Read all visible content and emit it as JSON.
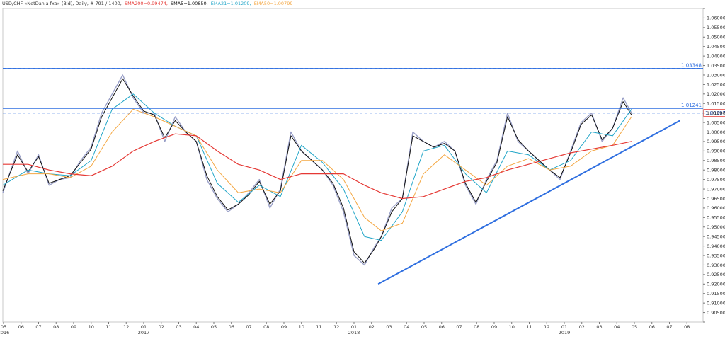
{
  "header": {
    "symbol": "USD/CHF «NetDania fxa» (Bid), Daily, # 791 / 1400,",
    "sma200": "SMA200=0.99474,",
    "sma5": "SMA5=1.00850,",
    "ema21": "EMA21=1.01209,",
    "ema50": "EMA50=1.00799"
  },
  "colors": {
    "price": "#9aa0c8",
    "sma5": "#111111",
    "sma200": "#e53935",
    "ema21": "#22a6c8",
    "ema50": "#f4a742",
    "trendline": "#2f6fe0",
    "level": "#2f6fe0"
  },
  "chart_data": {
    "type": "line",
    "y_axis": {
      "min": 0.9,
      "max": 1.065,
      "tick_step": 0.005,
      "position": "right",
      "decimals": 5
    },
    "x_axis": {
      "month_labels": [
        "05",
        "06",
        "07",
        "08",
        "09",
        "10",
        "11",
        "12",
        "01",
        "02",
        "03",
        "04",
        "05",
        "06",
        "07",
        "08",
        "09",
        "10",
        "11",
        "12",
        "01",
        "02",
        "03",
        "04",
        "05",
        "06",
        "07",
        "08",
        "09",
        "10",
        "11",
        "12",
        "01",
        "02",
        "03",
        "04",
        "05",
        "06",
        "07",
        "08"
      ],
      "year_labels": [
        {
          "text": "2016",
          "at_month": "2016-05"
        },
        {
          "text": "2017",
          "at_month": "2017-01"
        },
        {
          "text": "2018",
          "at_month": "2018-01"
        },
        {
          "text": "2019",
          "at_month": "2019-01"
        }
      ]
    },
    "horizontal_levels": [
      {
        "value": 1.03348,
        "label": "1.03348",
        "style": "solid"
      },
      {
        "value": 1.0335,
        "label": "",
        "style": "dashed"
      },
      {
        "value": 1.01241,
        "label": "1.01241",
        "style": "solid"
      },
      {
        "value": 1.00997,
        "label": "1.00997",
        "style": "dashed",
        "boxed": true
      }
    ],
    "trendline": {
      "from": {
        "x": 2018.115,
        "y": 0.92
      },
      "to": {
        "x": 2019.55,
        "y": 1.006
      }
    },
    "series": [
      {
        "key": "price",
        "x": [
          2016.33,
          2016.4,
          2016.45,
          2016.5,
          2016.55,
          2016.6,
          2016.65,
          2016.7,
          2016.75,
          2016.8,
          2016.85,
          2016.9,
          2016.95,
          2017.0,
          2017.05,
          2017.1,
          2017.15,
          2017.2,
          2017.25,
          2017.3,
          2017.35,
          2017.4,
          2017.45,
          2017.5,
          2017.55,
          2017.6,
          2017.65,
          2017.7,
          2017.75,
          2017.8,
          2017.85,
          2017.9,
          2017.95,
          2018.0,
          2018.05,
          2018.1,
          2018.13,
          2018.18,
          2018.23,
          2018.28,
          2018.33,
          2018.38,
          2018.43,
          2018.48,
          2018.53,
          2018.58,
          2018.63,
          2018.68,
          2018.73,
          2018.78,
          2018.83,
          2018.88,
          2018.93,
          2018.98,
          2019.03,
          2019.08,
          2019.13,
          2019.18,
          2019.23,
          2019.28,
          2019.32
        ],
        "values": [
          0.968,
          0.99,
          0.978,
          0.988,
          0.972,
          0.975,
          0.976,
          0.985,
          0.992,
          1.01,
          1.02,
          1.03,
          1.018,
          1.01,
          1.01,
          0.995,
          1.008,
          1.0,
          0.995,
          0.975,
          0.965,
          0.958,
          0.962,
          0.968,
          0.975,
          0.96,
          0.97,
          1.0,
          0.99,
          0.985,
          0.98,
          0.972,
          0.958,
          0.935,
          0.93,
          0.94,
          0.945,
          0.96,
          0.965,
          1.0,
          0.995,
          0.992,
          0.995,
          0.99,
          0.972,
          0.962,
          0.975,
          0.985,
          1.01,
          0.995,
          0.99,
          0.985,
          0.98,
          0.975,
          0.99,
          1.005,
          1.01,
          0.995,
          1.002,
          1.018,
          1.01
        ]
      },
      {
        "key": "sma5",
        "x": [
          2016.33,
          2016.4,
          2016.45,
          2016.5,
          2016.55,
          2016.6,
          2016.65,
          2016.7,
          2016.75,
          2016.8,
          2016.85,
          2016.9,
          2016.95,
          2017.0,
          2017.05,
          2017.1,
          2017.15,
          2017.2,
          2017.25,
          2017.3,
          2017.35,
          2017.4,
          2017.45,
          2017.5,
          2017.55,
          2017.6,
          2017.65,
          2017.7,
          2017.75,
          2017.8,
          2017.85,
          2017.9,
          2017.95,
          2018.0,
          2018.05,
          2018.1,
          2018.13,
          2018.18,
          2018.23,
          2018.28,
          2018.33,
          2018.38,
          2018.43,
          2018.48,
          2018.53,
          2018.58,
          2018.63,
          2018.68,
          2018.73,
          2018.78,
          2018.83,
          2018.88,
          2018.93,
          2018.98,
          2019.03,
          2019.08,
          2019.13,
          2019.18,
          2019.23,
          2019.28,
          2019.32
        ],
        "values": [
          0.969,
          0.988,
          0.979,
          0.987,
          0.973,
          0.975,
          0.977,
          0.984,
          0.991,
          1.008,
          1.018,
          1.028,
          1.019,
          1.011,
          1.009,
          0.997,
          1.006,
          1.0,
          0.995,
          0.977,
          0.966,
          0.959,
          0.962,
          0.967,
          0.974,
          0.962,
          0.969,
          0.998,
          0.99,
          0.985,
          0.98,
          0.973,
          0.96,
          0.937,
          0.931,
          0.939,
          0.945,
          0.958,
          0.965,
          0.998,
          0.995,
          0.992,
          0.994,
          0.99,
          0.973,
          0.963,
          0.974,
          0.984,
          1.008,
          0.996,
          0.99,
          0.985,
          0.98,
          0.976,
          0.989,
          1.004,
          1.009,
          0.996,
          1.002,
          1.016,
          1.009
        ]
      },
      {
        "key": "ema21",
        "x": [
          2016.33,
          2016.45,
          2016.55,
          2016.65,
          2016.75,
          2016.85,
          2016.95,
          2017.05,
          2017.15,
          2017.25,
          2017.35,
          2017.45,
          2017.55,
          2017.65,
          2017.75,
          2017.85,
          2017.95,
          2018.05,
          2018.13,
          2018.23,
          2018.33,
          2018.43,
          2018.53,
          2018.63,
          2018.73,
          2018.83,
          2018.93,
          2019.03,
          2019.13,
          2019.23,
          2019.32
        ],
        "values": [
          0.972,
          0.98,
          0.978,
          0.977,
          0.985,
          1.012,
          1.02,
          1.01,
          1.003,
          0.998,
          0.973,
          0.963,
          0.972,
          0.966,
          0.993,
          0.984,
          0.97,
          0.945,
          0.943,
          0.958,
          0.99,
          0.993,
          0.978,
          0.968,
          0.99,
          0.988,
          0.98,
          0.985,
          1.0,
          0.998,
          1.012
        ]
      },
      {
        "key": "ema50",
        "x": [
          2016.33,
          2016.45,
          2016.55,
          2016.65,
          2016.75,
          2016.85,
          2016.95,
          2017.05,
          2017.15,
          2017.25,
          2017.35,
          2017.45,
          2017.55,
          2017.65,
          2017.75,
          2017.85,
          2017.95,
          2018.05,
          2018.13,
          2018.23,
          2018.33,
          2018.43,
          2018.53,
          2018.63,
          2018.73,
          2018.83,
          2018.93,
          2019.03,
          2019.13,
          2019.23,
          2019.32
        ],
        "values": [
          0.975,
          0.978,
          0.978,
          0.976,
          0.982,
          1.0,
          1.012,
          1.008,
          1.003,
          0.998,
          0.98,
          0.968,
          0.97,
          0.968,
          0.985,
          0.985,
          0.975,
          0.955,
          0.948,
          0.952,
          0.978,
          0.988,
          0.98,
          0.972,
          0.982,
          0.986,
          0.98,
          0.982,
          0.99,
          0.993,
          1.008
        ]
      },
      {
        "key": "sma200",
        "x": [
          2016.33,
          2016.45,
          2016.55,
          2016.65,
          2016.75,
          2016.85,
          2016.95,
          2017.05,
          2017.15,
          2017.25,
          2017.35,
          2017.45,
          2017.55,
          2017.65,
          2017.75,
          2017.85,
          2017.95,
          2018.05,
          2018.13,
          2018.23,
          2018.33,
          2018.43,
          2018.53,
          2018.63,
          2018.73,
          2018.83,
          2018.93,
          2019.03,
          2019.13,
          2019.23,
          2019.32
        ],
        "values": [
          0.983,
          0.983,
          0.98,
          0.978,
          0.977,
          0.982,
          0.99,
          0.995,
          0.999,
          0.998,
          0.99,
          0.983,
          0.98,
          0.975,
          0.978,
          0.978,
          0.978,
          0.972,
          0.968,
          0.965,
          0.966,
          0.97,
          0.974,
          0.976,
          0.98,
          0.983,
          0.986,
          0.989,
          0.991,
          0.993,
          0.995
        ]
      }
    ]
  }
}
